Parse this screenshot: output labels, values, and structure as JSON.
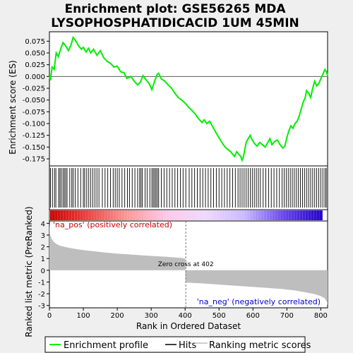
{
  "chart_data": {
    "type": "line",
    "title_line1": "Enrichment plot: GSE56265 MDA",
    "title_line2": "LYSOPHOSPHATIDICACID  1UM 45MIN",
    "es_ylabel": "Enrichment score (ES)",
    "rank_ylabel": "Ranked list metric (PreRanked)",
    "xlabel": "Rank in Ordered Dataset",
    "xlim": [
      0,
      820
    ],
    "x_ticks": [
      0,
      100,
      200,
      300,
      400,
      500,
      600,
      700,
      800
    ],
    "es_ylim": [
      -0.19,
      0.095
    ],
    "es_ticks": [
      0.075,
      0.05,
      0.025,
      0.0,
      -0.025,
      -0.05,
      -0.075,
      -0.1,
      -0.125,
      -0.15,
      -0.175
    ],
    "es_tick_labels": [
      "0.075",
      "0.050",
      "0.025",
      "0.000",
      "-0.025",
      "-0.050",
      "-0.075",
      "-0.100",
      "-0.125",
      "-0.150",
      "-0.175"
    ],
    "rank_ylim": [
      -3.2,
      4.2
    ],
    "rank_ticks": [
      4,
      3,
      2,
      1,
      0,
      -1,
      -2,
      -3
    ],
    "es_curve": [
      [
        0,
        0.0
      ],
      [
        3,
        -0.008
      ],
      [
        8,
        0.02
      ],
      [
        14,
        0.015
      ],
      [
        20,
        0.05
      ],
      [
        26,
        0.042
      ],
      [
        33,
        0.058
      ],
      [
        40,
        0.072
      ],
      [
        48,
        0.065
      ],
      [
        56,
        0.055
      ],
      [
        64,
        0.068
      ],
      [
        70,
        0.083
      ],
      [
        78,
        0.075
      ],
      [
        86,
        0.065
      ],
      [
        94,
        0.058
      ],
      [
        100,
        0.062
      ],
      [
        108,
        0.052
      ],
      [
        115,
        0.06
      ],
      [
        122,
        0.05
      ],
      [
        130,
        0.058
      ],
      [
        140,
        0.045
      ],
      [
        150,
        0.055
      ],
      [
        160,
        0.04
      ],
      [
        170,
        0.032
      ],
      [
        180,
        0.028
      ],
      [
        190,
        0.02
      ],
      [
        200,
        0.022
      ],
      [
        210,
        0.01
      ],
      [
        220,
        0.008
      ],
      [
        228,
        -0.004
      ],
      [
        240,
        0.0
      ],
      [
        250,
        -0.01
      ],
      [
        260,
        -0.018
      ],
      [
        268,
        -0.012
      ],
      [
        276,
        0.002
      ],
      [
        286,
        -0.008
      ],
      [
        294,
        -0.015
      ],
      [
        302,
        -0.028
      ],
      [
        310,
        -0.01
      ],
      [
        318,
        0.005
      ],
      [
        322,
        0.007
      ],
      [
        330,
        -0.005
      ],
      [
        340,
        -0.01
      ],
      [
        350,
        -0.018
      ],
      [
        360,
        -0.025
      ],
      [
        370,
        -0.036
      ],
      [
        380,
        -0.045
      ],
      [
        390,
        -0.05
      ],
      [
        402,
        -0.058
      ],
      [
        410,
        -0.065
      ],
      [
        420,
        -0.072
      ],
      [
        430,
        -0.08
      ],
      [
        440,
        -0.09
      ],
      [
        450,
        -0.098
      ],
      [
        456,
        -0.092
      ],
      [
        464,
        -0.1
      ],
      [
        472,
        -0.095
      ],
      [
        480,
        -0.105
      ],
      [
        490,
        -0.118
      ],
      [
        500,
        -0.13
      ],
      [
        510,
        -0.142
      ],
      [
        518,
        -0.15
      ],
      [
        526,
        -0.155
      ],
      [
        534,
        -0.16
      ],
      [
        540,
        -0.165
      ],
      [
        546,
        -0.17
      ],
      [
        552,
        -0.16
      ],
      [
        558,
        -0.165
      ],
      [
        564,
        -0.17
      ],
      [
        568,
        -0.178
      ],
      [
        572,
        -0.17
      ],
      [
        576,
        -0.155
      ],
      [
        580,
        -0.14
      ],
      [
        586,
        -0.132
      ],
      [
        592,
        -0.125
      ],
      [
        598,
        -0.135
      ],
      [
        604,
        -0.142
      ],
      [
        612,
        -0.148
      ],
      [
        620,
        -0.14
      ],
      [
        628,
        -0.145
      ],
      [
        636,
        -0.15
      ],
      [
        644,
        -0.14
      ],
      [
        650,
        -0.132
      ],
      [
        656,
        -0.145
      ],
      [
        664,
        -0.138
      ],
      [
        672,
        -0.135
      ],
      [
        680,
        -0.145
      ],
      [
        688,
        -0.152
      ],
      [
        694,
        -0.148
      ],
      [
        700,
        -0.13
      ],
      [
        706,
        -0.115
      ],
      [
        712,
        -0.105
      ],
      [
        718,
        -0.11
      ],
      [
        724,
        -0.1
      ],
      [
        730,
        -0.095
      ],
      [
        736,
        -0.085
      ],
      [
        742,
        -0.07
      ],
      [
        748,
        -0.055
      ],
      [
        754,
        -0.045
      ],
      [
        758,
        -0.03
      ],
      [
        764,
        -0.035
      ],
      [
        770,
        -0.045
      ],
      [
        776,
        -0.025
      ],
      [
        782,
        -0.01
      ],
      [
        788,
        -0.02
      ],
      [
        794,
        -0.015
      ],
      [
        800,
        -0.005
      ],
      [
        806,
        0.005
      ],
      [
        812,
        0.015
      ],
      [
        818,
        0.008
      ],
      [
        820,
        0.0
      ]
    ],
    "hits": [
      3,
      9,
      15,
      19,
      27,
      31,
      35,
      40,
      44,
      48,
      52,
      60,
      66,
      70,
      76,
      84,
      92,
      100,
      104,
      110,
      116,
      122,
      128,
      134,
      140,
      146,
      156,
      164,
      172,
      180,
      188,
      194,
      200,
      206,
      214,
      222,
      230,
      236,
      244,
      252,
      260,
      266,
      270,
      274,
      282,
      288,
      296,
      302,
      306,
      310,
      314,
      318,
      322,
      330,
      338,
      346,
      354,
      362,
      370,
      378,
      386,
      394,
      402,
      412,
      420,
      428,
      436,
      444,
      452,
      460,
      468,
      476,
      484,
      492,
      500,
      508,
      516,
      524,
      532,
      540,
      548,
      556,
      562,
      568,
      574,
      580,
      586,
      592,
      598,
      604,
      610,
      616,
      622,
      630,
      638,
      646,
      654,
      662,
      670,
      678,
      686,
      692,
      698,
      704,
      710,
      716,
      722,
      728,
      734,
      740,
      746,
      752,
      758,
      764,
      770,
      776,
      782,
      788,
      794,
      800,
      806,
      812,
      816
    ],
    "rank_metric": [
      [
        0,
        4.0
      ],
      [
        2,
        3.0
      ],
      [
        6,
        2.7
      ],
      [
        12,
        2.45
      ],
      [
        20,
        2.25
      ],
      [
        30,
        2.1
      ],
      [
        45,
        2.0
      ],
      [
        60,
        1.9
      ],
      [
        80,
        1.8
      ],
      [
        100,
        1.72
      ],
      [
        130,
        1.62
      ],
      [
        160,
        1.52
      ],
      [
        200,
        1.42
      ],
      [
        250,
        1.32
      ],
      [
        300,
        1.22
      ],
      [
        350,
        1.14
      ],
      [
        390,
        1.05
      ],
      [
        400,
        1.0
      ],
      [
        401,
        -1.0
      ],
      [
        402,
        -1.05
      ],
      [
        440,
        -1.1
      ],
      [
        480,
        -1.18
      ],
      [
        530,
        -1.28
      ],
      [
        580,
        -1.38
      ],
      [
        630,
        -1.48
      ],
      [
        680,
        -1.58
      ],
      [
        720,
        -1.7
      ],
      [
        750,
        -1.85
      ],
      [
        780,
        -2.02
      ],
      [
        800,
        -2.2
      ],
      [
        812,
        -2.4
      ],
      [
        818,
        -2.7
      ],
      [
        820,
        -3.0
      ]
    ],
    "zero_cross": 402,
    "zero_cross_label": "Zero cross at 402",
    "pos_label": "'na_pos' (positively correlated)",
    "neg_label": "'na_neg' (negatively correlated)",
    "legend": [
      "Enrichment profile",
      "Hits",
      "Ranking metric scores"
    ],
    "colors": {
      "curve": "#00ee00",
      "hits": "#000000",
      "metric_fill": "#bebebe",
      "pos_text": "#cc0000",
      "neg_text": "#0000cc",
      "heatmap_stops": [
        "#cc0000",
        "#ee4444",
        "#ff9999",
        "#ffc8e8",
        "#eed8ff",
        "#c8b8ff",
        "#6644ee",
        "#2200cc"
      ]
    }
  }
}
